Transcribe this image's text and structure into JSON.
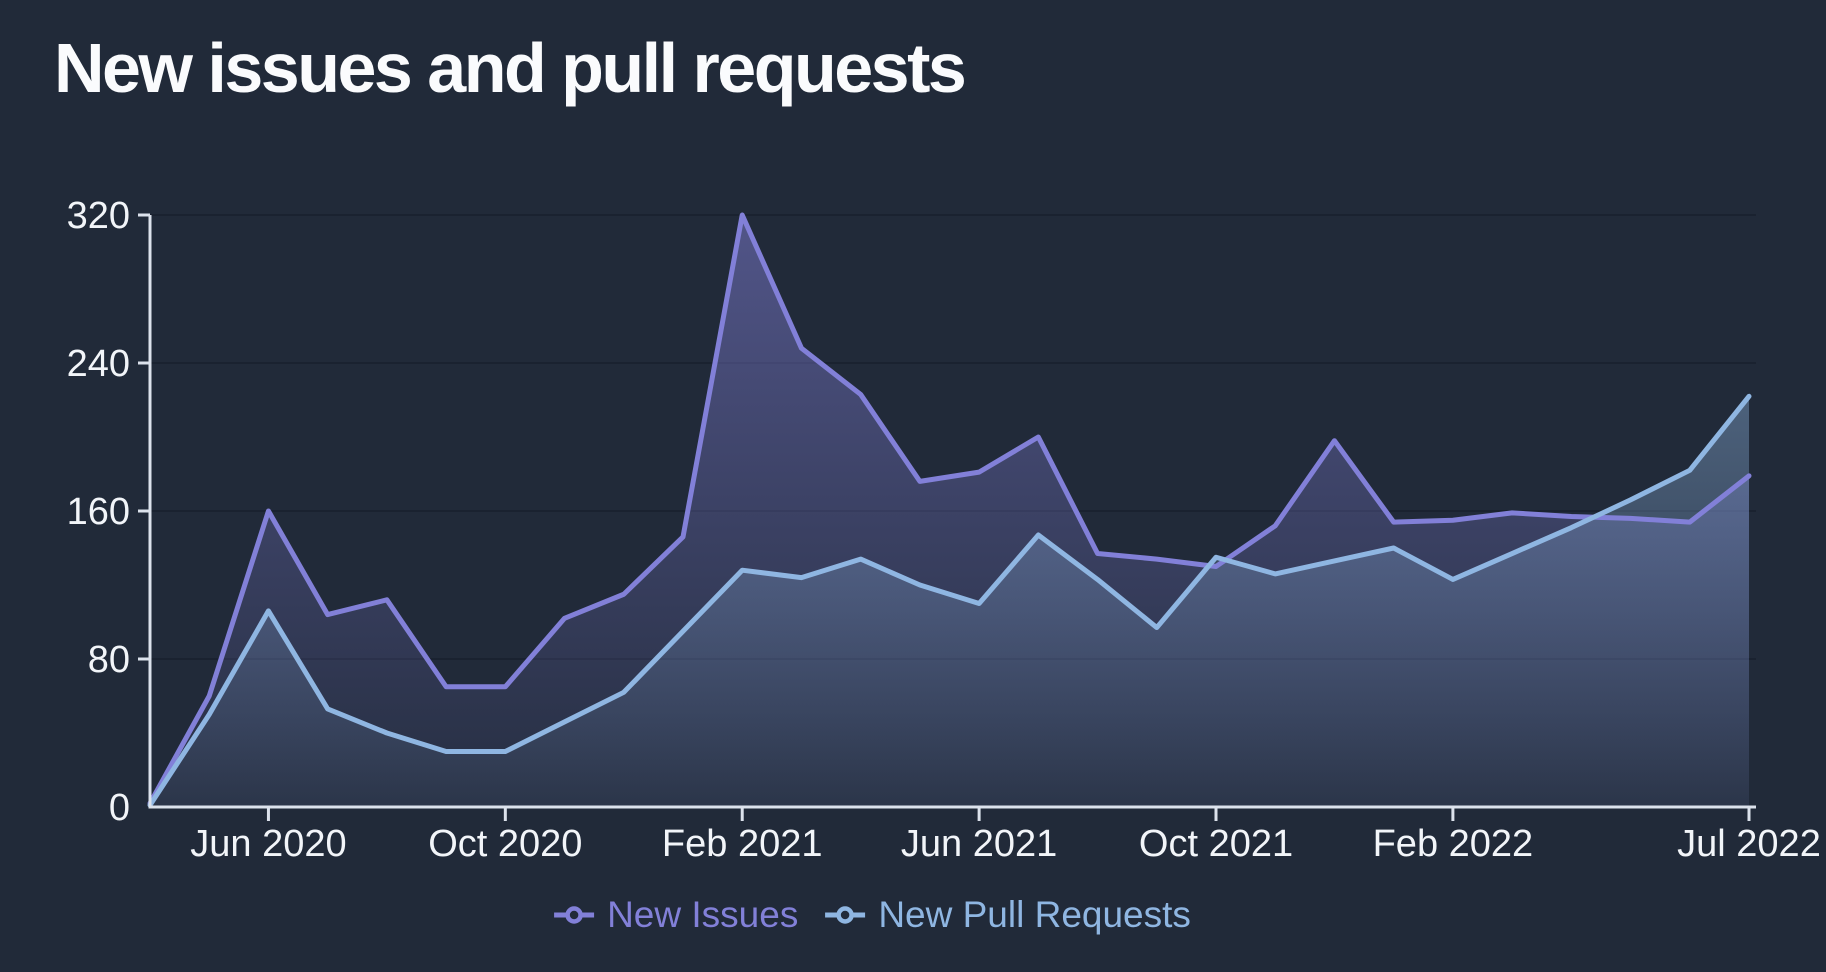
{
  "page": {
    "background": "#212A39",
    "grid_color": "#1A2230",
    "axis_color": "#DCE2EC",
    "text_color": "#F2F5F9",
    "title_color": "#FAFBFD"
  },
  "header": {
    "title": "New issues and pull requests"
  },
  "chart_data": {
    "type": "area",
    "title": "New issues and pull requests",
    "x": [
      "Apr 2020",
      "May 2020",
      "Jun 2020",
      "Jul 2020",
      "Aug 2020",
      "Sep 2020",
      "Oct 2020",
      "Nov 2020",
      "Dec 2020",
      "Jan 2021",
      "Feb 2021",
      "Mar 2021",
      "Apr 2021",
      "May 2021",
      "Jun 2021",
      "Jul 2021",
      "Aug 2021",
      "Sep 2021",
      "Oct 2021",
      "Nov 2021",
      "Dec 2021",
      "Jan 2022",
      "Feb 2022",
      "Mar 2022",
      "Apr 2022",
      "May 2022",
      "Jun 2022",
      "Jul 2022"
    ],
    "series": [
      {
        "name": "New Issues",
        "color": "#8280D8",
        "values": [
          2,
          60,
          160,
          104,
          112,
          65,
          65,
          102,
          115,
          146,
          320,
          248,
          223,
          176,
          181,
          200,
          137,
          134,
          130,
          152,
          198,
          154,
          155,
          159,
          157,
          156,
          154,
          179
        ]
      },
      {
        "name": "New Pull Requests",
        "color": "#8FB6E2",
        "values": [
          1,
          50,
          106,
          53,
          40,
          30,
          30,
          46,
          62,
          95,
          128,
          124,
          134,
          120,
          110,
          147,
          123,
          97,
          135,
          126,
          133,
          140,
          123,
          137,
          151,
          166,
          182,
          222
        ]
      }
    ],
    "x_tick_labels": [
      "Jun 2020",
      "Oct 2020",
      "Feb 2021",
      "Jun 2021",
      "Oct 2021",
      "Feb 2022",
      "Jul 2022"
    ],
    "x_tick_indices": [
      2,
      6,
      10,
      14,
      18,
      22,
      27
    ],
    "y_ticks": [
      0,
      80,
      160,
      240,
      320
    ],
    "ylim": [
      0,
      320
    ],
    "grid": "horizontal-dark",
    "legend_position": "bottom-center"
  }
}
